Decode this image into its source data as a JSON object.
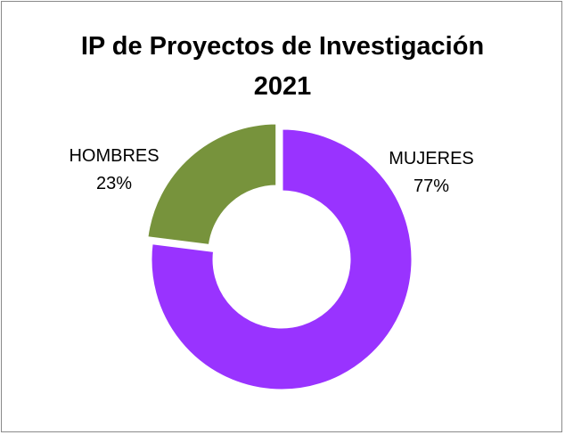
{
  "chart_data": {
    "type": "pie",
    "donut": true,
    "title": [
      "IP de Proyectos de Investigación",
      "2021"
    ],
    "slices": [
      {
        "label": "MUJERES",
        "value": 77,
        "value_label": "77%",
        "color": "#9933ff"
      },
      {
        "label": "HOMBRES",
        "value": 23,
        "value_label": "23%",
        "color": "#77933c"
      }
    ],
    "exploded": [
      "HOMBRES"
    ],
    "legend": "none",
    "data_labels": "outside"
  }
}
